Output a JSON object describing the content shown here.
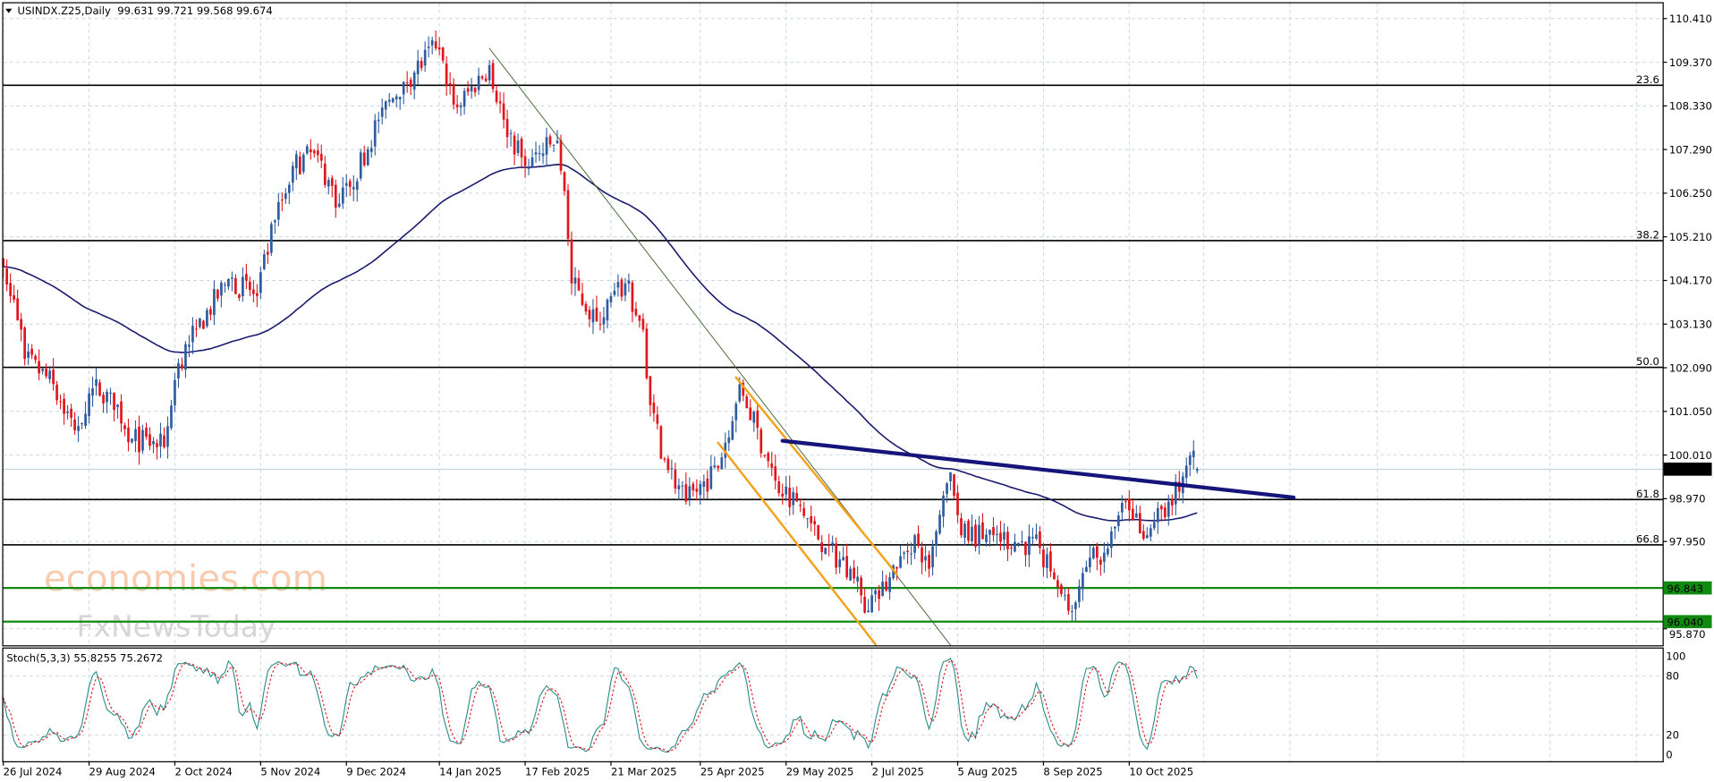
{
  "header": {
    "symbol_line": "USINDX.Z25,Daily  99.631 99.721 99.568 99.674"
  },
  "indicator_header": "Stoch(5,3,3) 55.8255 75.2672",
  "watermark": {
    "brand": "economies.com",
    "sub": "FxNewsToday"
  },
  "colors": {
    "up": "#2e5c9e",
    "down": "#e0161c",
    "ma": "#1a1a6e",
    "trend_blue": "#14147a",
    "channel": "#f5a11c",
    "thin_trend": "#4a6a3a",
    "support": "#108a10",
    "fib": "#000000"
  },
  "chart_data": [
    {
      "type": "candlestick",
      "title": "USINDX.Z25,Daily",
      "last_ohlc": {
        "open": 99.631,
        "high": 99.721,
        "low": 99.568,
        "close": 99.674
      },
      "current_price_label": "99.674",
      "y_ticks": [
        "110.410",
        "109.370",
        "108.330",
        "107.290",
        "106.250",
        "105.210",
        "104.170",
        "103.130",
        "102.090",
        "101.050",
        "100.010",
        "98.970",
        "97.950",
        "95.870"
      ],
      "ylim": [
        95.55,
        110.8
      ],
      "x_ticks": [
        {
          "date": "2024-07-26",
          "label": "26 Jul 2024"
        },
        {
          "date": "2024-08-29",
          "label": "29 Aug 2024"
        },
        {
          "date": "2024-10-02",
          "label": "2 Oct 2024"
        },
        {
          "date": "2024-11-05",
          "label": "5 Nov 2024"
        },
        {
          "date": "2024-12-09",
          "label": "9 Dec 2024"
        },
        {
          "date": "2025-01-14",
          "label": "14 Jan 2025"
        },
        {
          "date": "2025-02-17",
          "label": "17 Feb 2025"
        },
        {
          "date": "2025-03-21",
          "label": "21 Mar 2025"
        },
        {
          "date": "2025-04-25",
          "label": "25 Apr 2025"
        },
        {
          "date": "2025-05-29",
          "label": "29 May 2025"
        },
        {
          "date": "2025-07-02",
          "label": "2 Jul 2025"
        },
        {
          "date": "2025-08-05",
          "label": "5 Aug 2025"
        },
        {
          "date": "2025-09-08",
          "label": "8 Sep 2025"
        },
        {
          "date": "2025-10-10",
          "label": "10 Oct 2025"
        }
      ],
      "grid": true,
      "approx_closes": [
        [
          "2024-07-26",
          104.5
        ],
        [
          "2024-08-02",
          103.0
        ],
        [
          "2024-08-05",
          102.3
        ],
        [
          "2024-08-15",
          101.7
        ],
        [
          "2024-08-23",
          100.6
        ],
        [
          "2024-08-30",
          101.6
        ],
        [
          "2024-09-06",
          101.5
        ],
        [
          "2024-09-16",
          100.4
        ],
        [
          "2024-09-27",
          100.2
        ],
        [
          "2024-10-03",
          102.2
        ],
        [
          "2024-10-10",
          103.0
        ],
        [
          "2024-10-23",
          104.2
        ],
        [
          "2024-11-04",
          103.8
        ],
        [
          "2024-11-11",
          105.6
        ],
        [
          "2024-11-18",
          106.9
        ],
        [
          "2024-11-26",
          107.2
        ],
        [
          "2024-12-05",
          106.0
        ],
        [
          "2024-12-10",
          106.4
        ],
        [
          "2024-12-20",
          108.0
        ],
        [
          "2024-12-31",
          108.9
        ],
        [
          "2025-01-13",
          109.7
        ],
        [
          "2025-01-21",
          108.3
        ],
        [
          "2025-02-03",
          109.3
        ],
        [
          "2025-02-07",
          108.0
        ],
        [
          "2025-02-17",
          106.9
        ],
        [
          "2025-02-28",
          107.5
        ],
        [
          "2025-03-04",
          106.3
        ],
        [
          "2025-03-06",
          104.1
        ],
        [
          "2025-03-17",
          103.2
        ],
        [
          "2025-03-27",
          104.1
        ],
        [
          "2025-04-03",
          103.0
        ],
        [
          "2025-04-07",
          101.2
        ],
        [
          "2025-04-11",
          99.9
        ],
        [
          "2025-04-21",
          98.9
        ],
        [
          "2025-05-02",
          99.7
        ],
        [
          "2025-05-12",
          101.7
        ],
        [
          "2025-05-26",
          99.4
        ],
        [
          "2025-06-03",
          98.9
        ],
        [
          "2025-06-13",
          97.8
        ],
        [
          "2025-06-24",
          97.3
        ],
        [
          "2025-07-01",
          96.3
        ],
        [
          "2025-07-11",
          97.3
        ],
        [
          "2025-07-18",
          98.1
        ],
        [
          "2025-07-24",
          97.3
        ],
        [
          "2025-08-01",
          99.6
        ],
        [
          "2025-08-06",
          98.1
        ],
        [
          "2025-08-19",
          98.1
        ],
        [
          "2025-09-05",
          97.8
        ],
        [
          "2025-09-17",
          96.3
        ],
        [
          "2025-09-26",
          97.8
        ],
        [
          "2025-09-30",
          97.4
        ],
        [
          "2025-10-09",
          98.9
        ],
        [
          "2025-10-17",
          98.1
        ],
        [
          "2025-10-27",
          98.9
        ],
        [
          "2025-10-31",
          99.5
        ],
        [
          "2025-11-04",
          100.0
        ],
        [
          "2025-11-06",
          99.674
        ]
      ],
      "moving_average": {
        "type": "EMA",
        "period": 100
      },
      "fib_levels": [
        {
          "label": "23.6",
          "price": 108.82
        },
        {
          "label": "38.2",
          "price": 105.12
        },
        {
          "label": "50.0",
          "price": 102.1
        },
        {
          "label": "61.8",
          "price": 98.95
        },
        {
          "label": "66.8",
          "price": 97.87
        }
      ],
      "support_levels": [
        {
          "label": "96.843",
          "price": 96.843
        },
        {
          "label": "96.040",
          "price": 96.04
        }
      ],
      "trendlines": [
        {
          "kind": "thin",
          "from": [
            "2025-02-03",
            109.7
          ],
          "to": [
            "2025-08-01",
            95.48
          ]
        },
        {
          "kind": "channel",
          "from": [
            "2025-05-09",
            101.86
          ],
          "to": [
            "2025-07-11",
            97.17
          ]
        },
        {
          "kind": "channel",
          "from": [
            "2025-05-02",
            100.3
          ],
          "to": [
            "2025-07-03",
            95.5
          ]
        },
        {
          "kind": "resistance",
          "from": [
            "2025-05-28",
            100.35
          ],
          "to": [
            "2025-12-15",
            99.0
          ]
        }
      ]
    },
    {
      "type": "line",
      "title": "Stoch(5,3,3)",
      "values_last": {
        "main": 55.8255,
        "signal": 75.2672
      },
      "y_ticks": [
        "100",
        "80",
        "20",
        "0"
      ],
      "ylim": [
        0,
        100
      ],
      "levels": [
        80,
        20
      ]
    }
  ]
}
